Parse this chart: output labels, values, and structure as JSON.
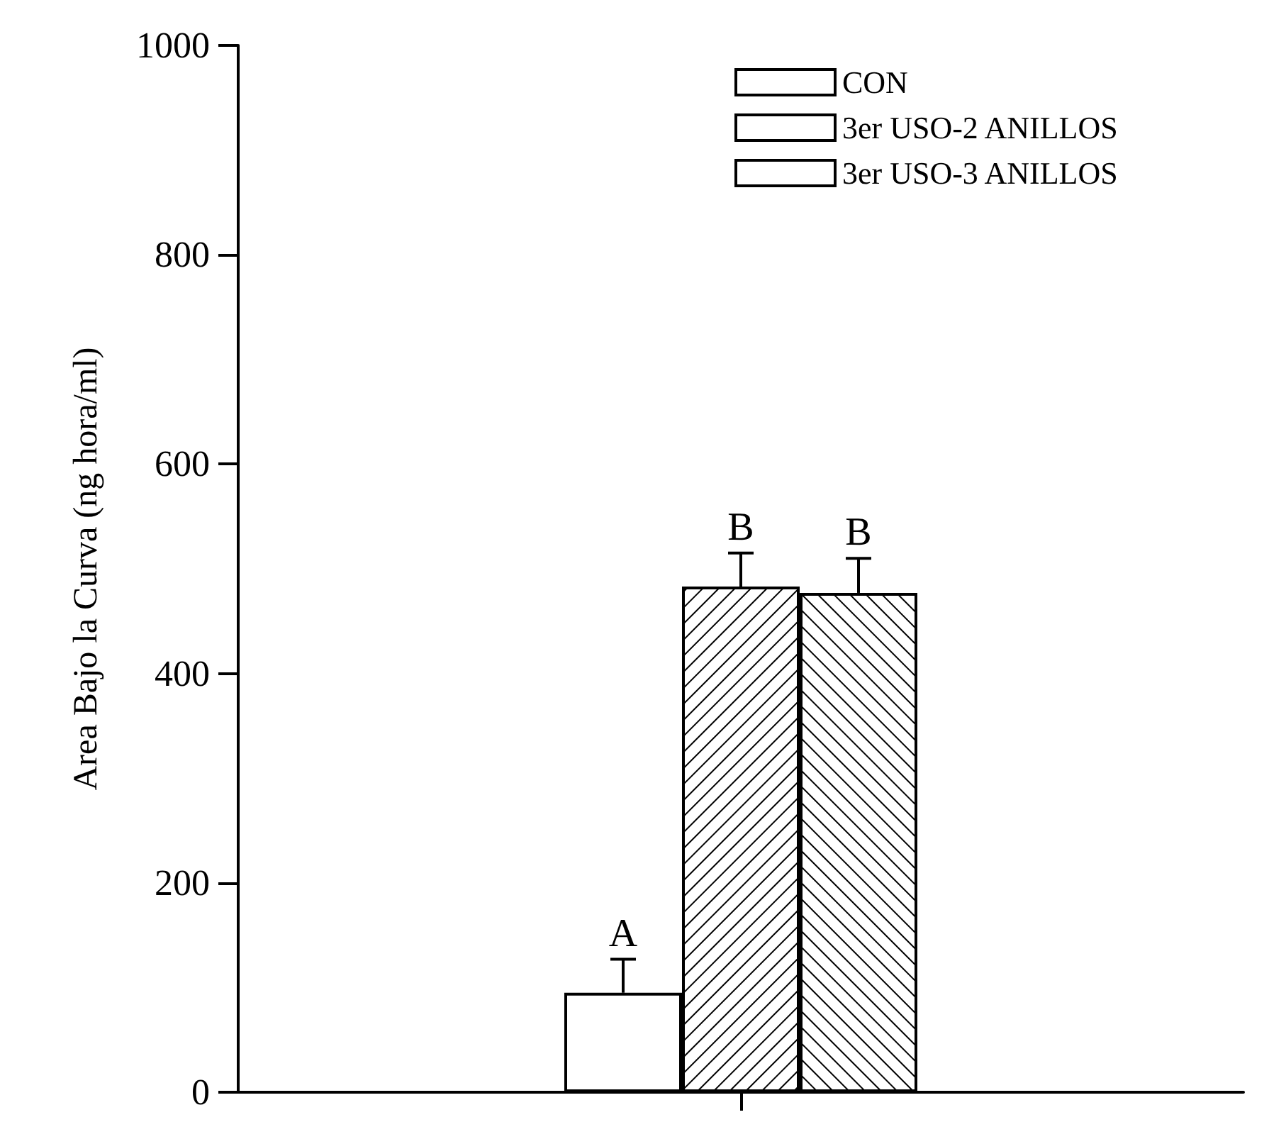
{
  "chart_data": {
    "type": "bar",
    "ylabel": "Area Bajo la Curva (ng hora/ml)",
    "categories": [
      null
    ],
    "series": [
      {
        "name": "CON",
        "color": "#ffffff",
        "values": [
          95
        ],
        "errors": [
          32
        ]
      },
      {
        "name": "3er USO-2 ANILLOS",
        "color": "#ffffff",
        "values": [
          483
        ],
        "errors": [
          32
        ]
      },
      {
        "name": "3er USO-3 ANILLOS",
        "color": "#ffffff",
        "values": [
          477
        ],
        "errors": [
          33
        ]
      }
    ],
    "annotations": [
      "A",
      "B",
      "B"
    ],
    "ylim": [
      0,
      1000
    ],
    "yticks": [
      0,
      200,
      400,
      600,
      800,
      1000
    ],
    "grid": false,
    "legend": "top right"
  }
}
